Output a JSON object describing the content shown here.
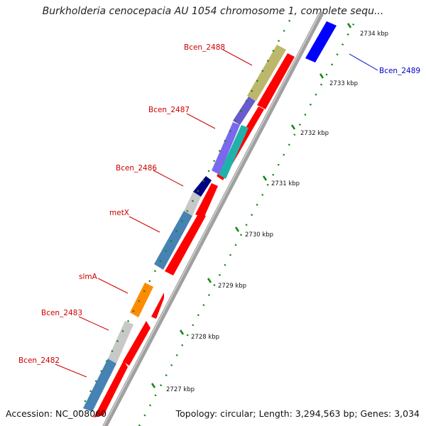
{
  "title": "Burkholderia cenocepacia AU 1054 chromosome 1, complete sequ...",
  "footer": {
    "accession": "Accession: NC_008060",
    "topology": "Topology: circular; Length: 3,294,563 bp; Genes: 3,034"
  },
  "ticks": [
    {
      "label": "2727 kbp"
    },
    {
      "label": "2728 kbp"
    },
    {
      "label": "2729 kbp"
    },
    {
      "label": "2730 kbp"
    },
    {
      "label": "2731 kbp"
    },
    {
      "label": "2732 kbp"
    },
    {
      "label": "2733 kbp"
    },
    {
      "label": "2734 kbp"
    }
  ],
  "gene_labels": [
    {
      "name": "Bcen_2482",
      "color": "#cc0000"
    },
    {
      "name": "Bcen_2483",
      "color": "#cc0000"
    },
    {
      "name": "slmA",
      "color": "#cc0000"
    },
    {
      "name": "metX",
      "color": "#cc0000"
    },
    {
      "name": "Bcen_2486",
      "color": "#cc0000"
    },
    {
      "name": "Bcen_2487",
      "color": "#cc0000"
    },
    {
      "name": "Bcen_2488",
      "color": "#cc0000"
    },
    {
      "name": "Bcen_2489",
      "color": "#0000cc"
    }
  ],
  "colors": {
    "backbone": "#9a9a9a",
    "cds": "#ff0000",
    "blue_gene": "#0000ff",
    "tick": "#118811"
  }
}
